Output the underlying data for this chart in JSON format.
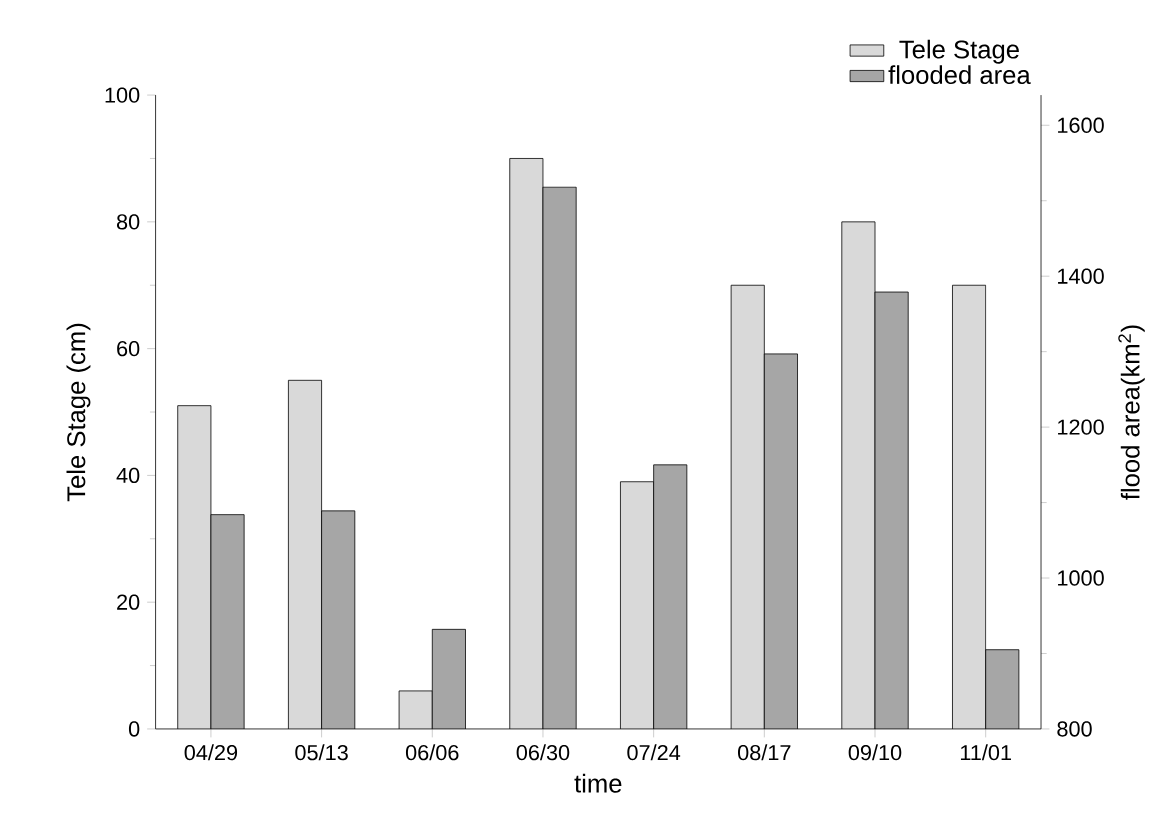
{
  "chart_data": {
    "type": "bar",
    "xlabel": "time",
    "ylabel": "Tele Stage (cm)",
    "y2label": "flood area(km$^{2}$)",
    "categories": [
      "04/29",
      "05/13",
      "06/06",
      "06/30",
      "07/24",
      "08/17",
      "09/10",
      "11/01"
    ],
    "series": [
      {
        "name": "Tele Stage",
        "color": "#d9d9d9",
        "values": [
          51,
          55,
          6,
          90,
          39,
          70,
          80,
          70
        ]
      },
      {
        "name": "flooded area",
        "color": "#a6a6a6",
        "axis": "y2",
        "values": [
          1084,
          1089,
          932,
          1518,
          1150,
          1297,
          1379,
          905
        ]
      }
    ],
    "ylim": [
      0,
      100
    ],
    "yticks": [
      0,
      20,
      40,
      60,
      80,
      100
    ],
    "y2lim": [
      800,
      1640
    ],
    "y2ticks": [
      800,
      1000,
      1200,
      1400,
      1600
    ],
    "legend": "top right",
    "grid": false
  }
}
